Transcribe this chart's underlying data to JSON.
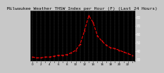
{
  "title": "Milwaukee Weather THSW Index per Hour (F) (Last 24 Hours)",
  "title_fontsize": 4.5,
  "background_color": "#c8c8c8",
  "plot_bg_color": "#000000",
  "line_color": "#ff0000",
  "marker": "s",
  "marker_size": 1.2,
  "line_width": 0.8,
  "line_style": "--",
  "grid_color": "#888888",
  "grid_style": "--",
  "hours": [
    0,
    1,
    2,
    3,
    4,
    5,
    6,
    7,
    8,
    9,
    10,
    11,
    12,
    13,
    14,
    15,
    16,
    17,
    18,
    19,
    20,
    21,
    22,
    23
  ],
  "values": [
    33,
    32,
    32,
    33,
    33,
    34,
    35,
    35,
    36,
    38,
    41,
    48,
    64,
    82,
    74,
    58,
    52,
    47,
    44,
    43,
    41,
    39,
    37,
    35
  ],
  "ylim": [
    28,
    88
  ],
  "xlim": [
    -0.5,
    23.5
  ],
  "yticks": [
    30,
    40,
    50,
    60,
    70,
    80
  ],
  "ytick_labels": [
    "30",
    "40",
    "50",
    "60",
    "70",
    "80"
  ],
  "ytick_fontsize": 3.5,
  "xtick_fontsize": 3.0,
  "border_color": "#000000",
  "title_color": "#000000",
  "tick_color": "#000000",
  "grid_linewidth": 0.3,
  "grid_alpha": 0.6
}
